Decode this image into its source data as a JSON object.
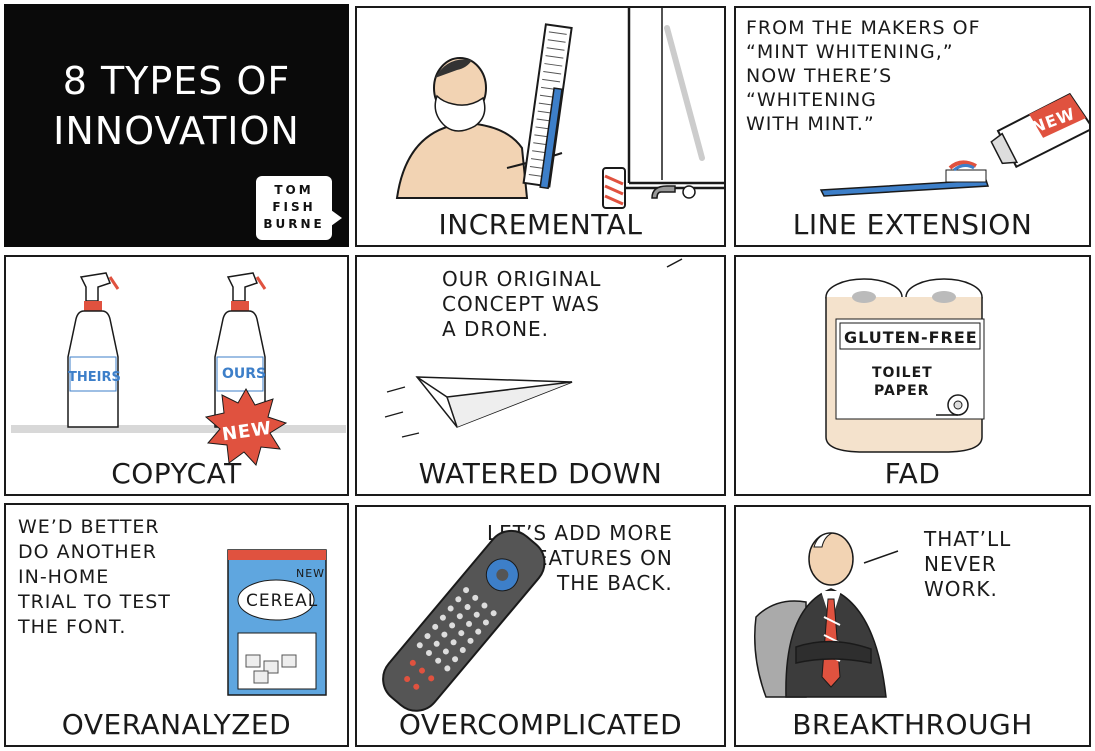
{
  "title": {
    "line1": "8 TYPES OF",
    "line2": "INNOVATION"
  },
  "credit": {
    "line1": "TOM",
    "line2": "FISH",
    "line3": "BURNE"
  },
  "panels": {
    "incremental": {
      "label": "INCREMENTAL"
    },
    "line_extension": {
      "label": "LINE EXTENSION",
      "caption": "FROM THE MAKERS OF\n“MINT WHITENING,”\nNOW THERE’S\n“WHITENING\nWITH MINT.”",
      "tube_badge": "NEW"
    },
    "copycat": {
      "label": "COPYCAT",
      "bottle_left": "THEIRS",
      "bottle_right": "OURS",
      "badge": "NEW"
    },
    "watered_down": {
      "label": "WATERED DOWN",
      "speech": "OUR ORIGINAL\nCONCEPT WAS\nA DRONE."
    },
    "fad": {
      "label": "FAD",
      "pack_title": "GLUTEN-FREE",
      "pack_sub1": "TOILET",
      "pack_sub2": "PAPER"
    },
    "overanalyzed": {
      "label": "OVERANALYZED",
      "speech": "WE’D BETTER\nDO ANOTHER\nIN-HOME\nTRIAL TO TEST\nTHE FONT.",
      "box_new": "NEW",
      "box_brand": "CEREAL"
    },
    "overcomplicated": {
      "label": "OVERCOMPLICATED",
      "speech": "LET’S ADD MORE\nFEATURES ON\nTHE BACK."
    },
    "breakthrough": {
      "label": "BREAKTHROUGH",
      "speech": "THAT’LL\nNEVER\nWORK."
    }
  },
  "colors": {
    "ink": "#1a1a1a",
    "title_bg": "#0a0a0a",
    "accent_red": "#e0523f",
    "accent_blue": "#3d7fc9",
    "skin": "#f2d3b3"
  }
}
